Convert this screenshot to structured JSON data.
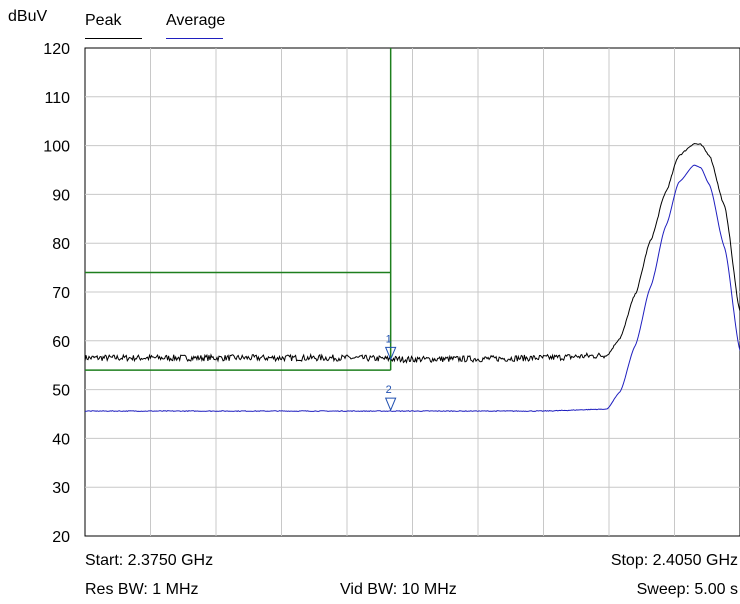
{
  "chart_data": {
    "type": "line",
    "unit_label": "dBuV",
    "ylim": [
      20,
      120
    ],
    "y_ticks": [
      "120",
      "110",
      "100",
      "90",
      "80",
      "70",
      "60",
      "50",
      "40",
      "30",
      "20"
    ],
    "xlim_ghz": [
      2.375,
      2.405
    ],
    "grid": true,
    "legend": {
      "position": "top-left",
      "items": [
        {
          "name": "Peak",
          "color": "#000000"
        },
        {
          "name": "Average",
          "color": "#1f1fbf"
        }
      ]
    },
    "series": [
      {
        "name": "Peak",
        "color": "#000000",
        "x": [
          2.375,
          2.3779,
          2.3809,
          2.3839,
          2.3869,
          2.3899,
          2.3929,
          2.3959,
          2.3989,
          2.3995,
          2.4002,
          2.4009,
          2.4016,
          2.4022,
          2.4029,
          2.4032,
          2.4036,
          2.4043,
          2.405
        ],
        "y": [
          56.5,
          56.5,
          56.5,
          56.5,
          56.5,
          56.2,
          56.3,
          56.5,
          57.0,
          60.5,
          69.5,
          80.5,
          90.5,
          98.0,
          100.4,
          100.2,
          98.0,
          87.5,
          66.0
        ]
      },
      {
        "name": "Average",
        "color": "#1f1fbf",
        "x": [
          2.375,
          2.3779,
          2.3809,
          2.3839,
          2.3869,
          2.3899,
          2.3929,
          2.3959,
          2.3989,
          2.3995,
          2.4002,
          2.4009,
          2.4016,
          2.4022,
          2.4029,
          2.4032,
          2.4036,
          2.4043,
          2.405
        ],
        "y": [
          45.6,
          45.6,
          45.6,
          45.6,
          45.6,
          45.6,
          45.6,
          45.6,
          46.0,
          49.5,
          59.0,
          71.0,
          83.5,
          92.5,
          96.0,
          95.5,
          92.0,
          79.0,
          58.0
        ]
      }
    ],
    "limit_lines": [
      {
        "x_end": 2.389,
        "y": 74,
        "color": "#1e7f1e"
      },
      {
        "x_end": 2.389,
        "y": 54,
        "color": "#1e7f1e"
      },
      {
        "x": 2.389,
        "y_from": 54,
        "y_to": 120,
        "color": "#1e7f1e"
      }
    ],
    "markers": [
      {
        "label": "1",
        "x": 2.389,
        "y": 56.0
      },
      {
        "label": "2",
        "x": 2.389,
        "y": 45.6
      }
    ],
    "footer": {
      "start": "Start: 2.3750 GHz",
      "stop": "Stop: 2.4050 GHz",
      "res_bw": "Res BW: 1 MHz",
      "vid_bw": "Vid BW: 10 MHz",
      "sweep": "Sweep: 5.00 s"
    }
  }
}
